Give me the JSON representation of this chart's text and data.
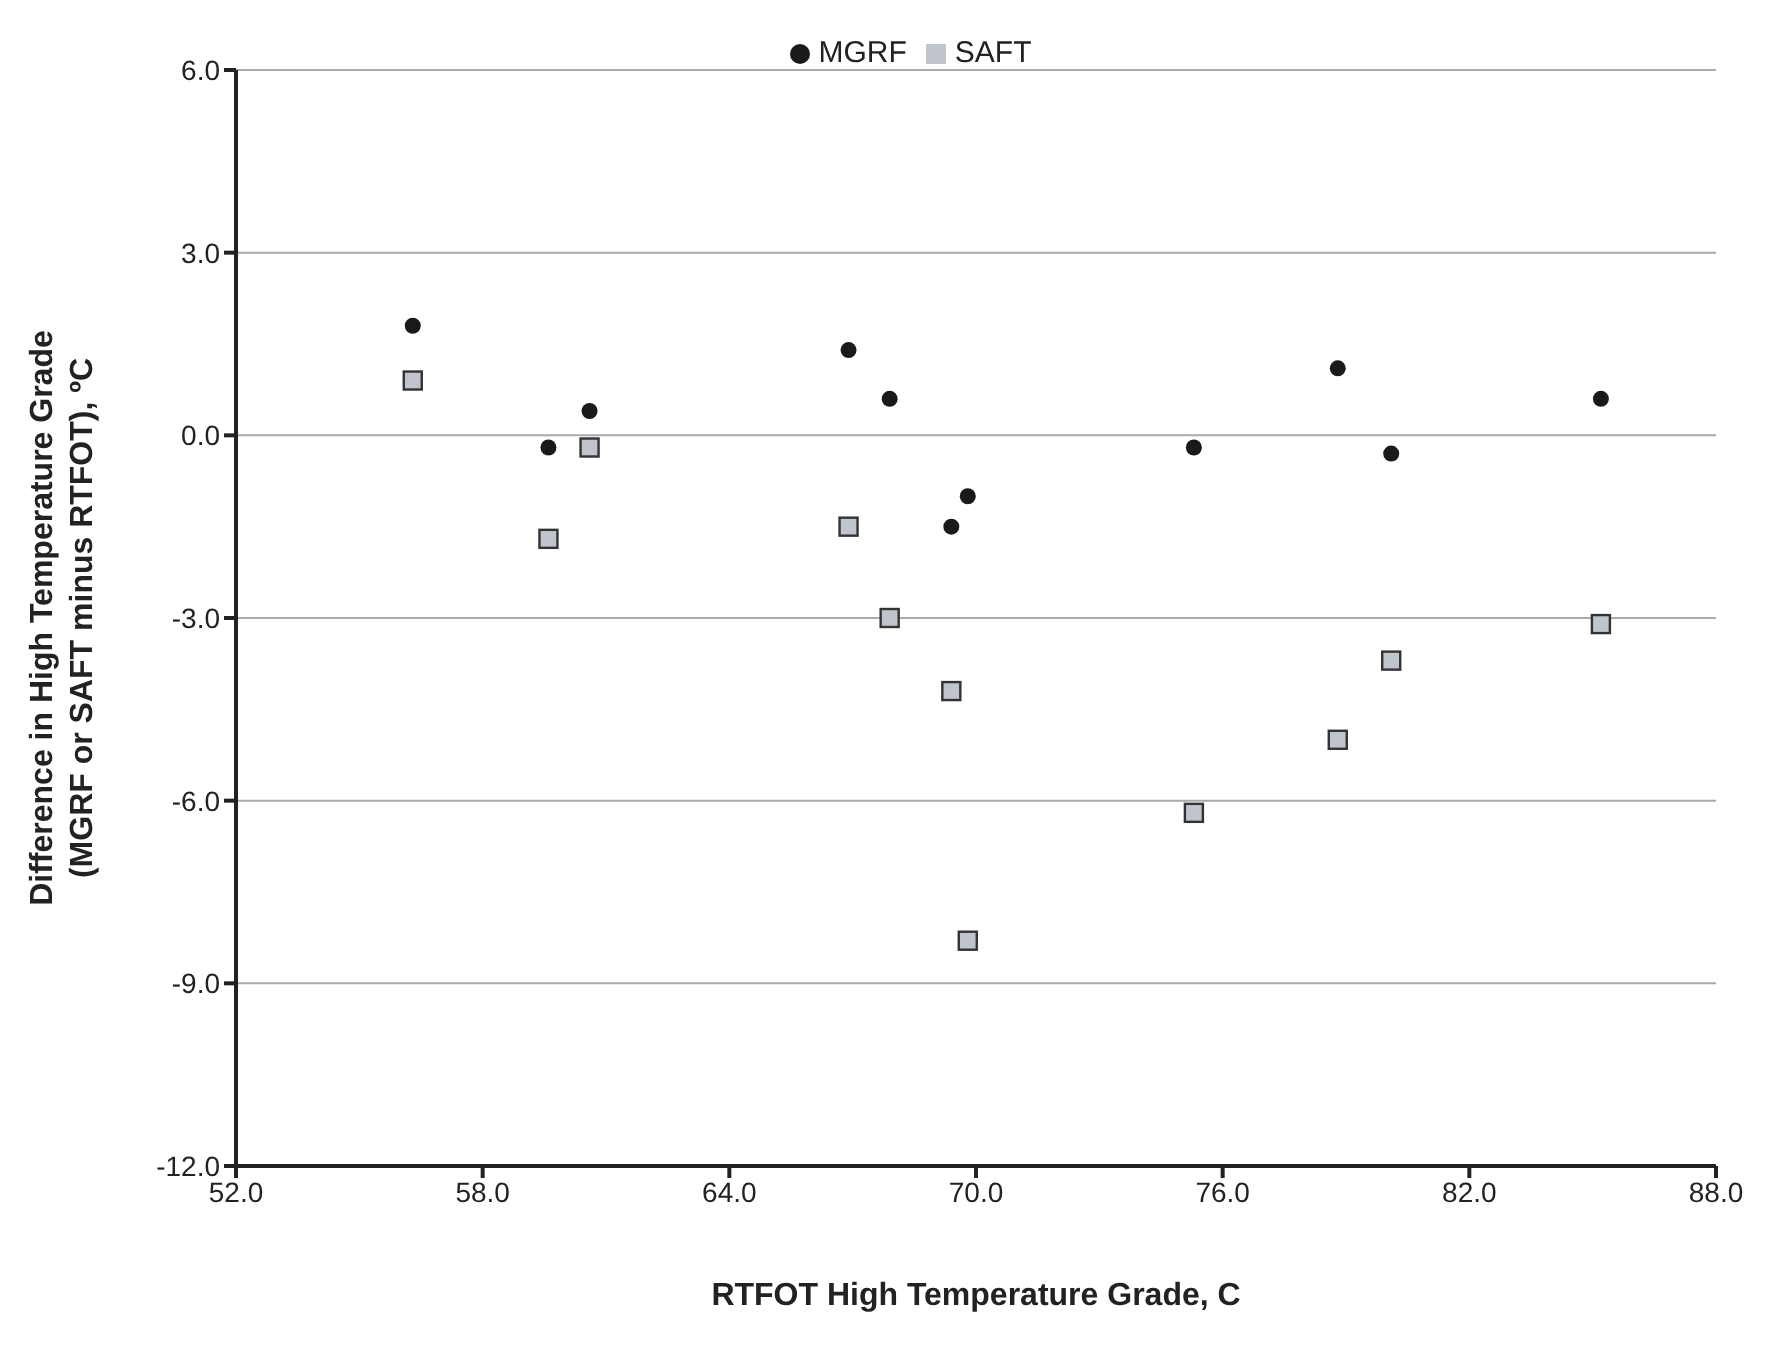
{
  "chart_data": {
    "type": "scatter",
    "xlabel": "RTFOT High Temperature Grade, C",
    "ylabel": "Difference in High Temperature Grade (MGRF or SAFT minus RTFOT), ºC",
    "x": [
      56.3,
      59.6,
      60.6,
      66.9,
      67.9,
      69.4,
      69.8,
      75.3,
      78.8,
      80.1,
      85.2
    ],
    "series": [
      {
        "name": "MGRF",
        "color": "#1a1a1a",
        "marker": "circle",
        "values": [
          1.8,
          -0.2,
          0.4,
          1.4,
          0.6,
          -1.5,
          -1.0,
          -0.2,
          1.1,
          -0.3,
          0.6
        ]
      },
      {
        "name": "SAFT",
        "color": "#c0c4cc",
        "marker": "square",
        "values": [
          0.9,
          -1.7,
          -0.2,
          -1.5,
          -3.0,
          -4.2,
          -8.3,
          -6.2,
          -5.0,
          -3.7,
          -3.1
        ]
      }
    ],
    "xlim": [
      52,
      88
    ],
    "xticks": [
      {
        "value": 52,
        "label": "52.0"
      },
      {
        "value": 58,
        "label": "58.0"
      },
      {
        "value": 64,
        "label": "64.0"
      },
      {
        "value": 70,
        "label": "70.0"
      },
      {
        "value": 76,
        "label": "76.0"
      },
      {
        "value": 82,
        "label": "82.0"
      },
      {
        "value": 88,
        "label": "88.0"
      }
    ],
    "ylim": [
      -12,
      6
    ],
    "yticks": [
      {
        "value": -12,
        "label": "-12.0"
      },
      {
        "value": -9,
        "label": "-9.0"
      },
      {
        "value": -6,
        "label": "-6.0"
      },
      {
        "value": -3,
        "label": "-3.0"
      },
      {
        "value": 0,
        "label": "0.0"
      },
      {
        "value": 3,
        "label": "3.0"
      },
      {
        "value": 6,
        "label": "6.0"
      }
    ],
    "grid": "y",
    "legend": "top"
  }
}
